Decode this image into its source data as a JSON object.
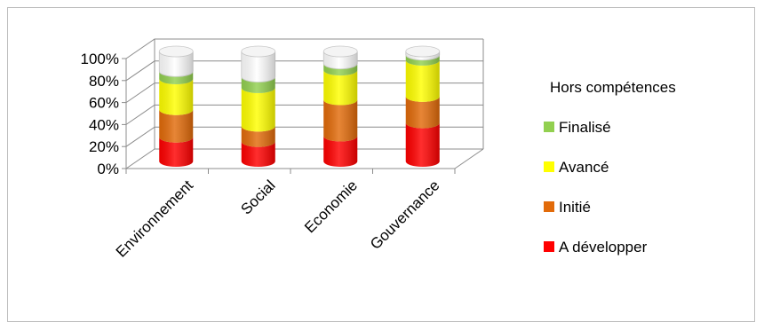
{
  "chart_data": {
    "type": "bar",
    "subtype": "stacked-100-cylinder-3d",
    "categories": [
      "Environnement",
      "Social",
      "Economie",
      "Gouvernance"
    ],
    "series": [
      {
        "name": "A développer",
        "color": "#ff0000",
        "values": [
          22,
          18,
          23,
          35
        ]
      },
      {
        "name": "Initié",
        "color": "#e26b0a",
        "values": [
          25,
          14,
          33,
          24
        ]
      },
      {
        "name": "Avancé",
        "color": "#ffff00",
        "values": [
          28,
          35,
          27,
          33
        ]
      },
      {
        "name": "Finalisé",
        "color": "#92d050",
        "values": [
          7,
          10,
          6,
          5
        ]
      },
      {
        "name": "Hors compétences",
        "color": "#ffffff",
        "values": [
          18,
          23,
          11,
          3
        ]
      }
    ],
    "y_ticks": [
      "0%",
      "20%",
      "40%",
      "60%",
      "80%",
      "100%"
    ],
    "ylim": [
      0,
      100
    ],
    "legend_position": "right",
    "grid": true
  }
}
